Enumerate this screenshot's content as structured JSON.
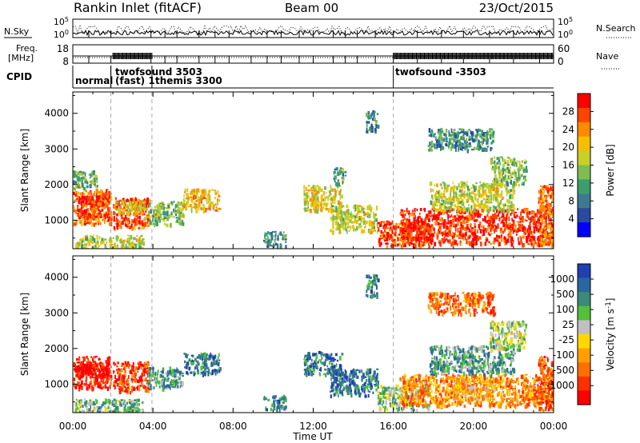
{
  "header": {
    "station": "Rankin Inlet (fitACF)",
    "beam": "Beam 00",
    "date": "23/Oct/2015"
  },
  "noise_panel": {
    "left_label": "N.Sky",
    "right_label": "N.Search",
    "left_ticks": [
      "10^5",
      "10^0"
    ],
    "right_ticks": [
      "10^5",
      "10^0"
    ]
  },
  "freq_panel": {
    "left_label_1": "Freq.",
    "left_label_2": "[MHz]",
    "right_label": "Nave",
    "left_ticks": [
      "18",
      "8"
    ],
    "right_ticks": [
      "60",
      "0"
    ]
  },
  "cpid_panel": {
    "label": "CPID",
    "modes": [
      {
        "label": "normal",
        "start_hour": 0.0
      },
      {
        "label": "twofsound 3503",
        "start_hour": 1.9
      },
      {
        "label": "(fast) 1",
        "start_hour": 1.9
      },
      {
        "label": "themis 3300",
        "start_hour": 3.95
      },
      {
        "label": "twofsound -3503",
        "start_hour": 16.0
      }
    ]
  },
  "x_axis": {
    "label": "Time UT",
    "ticks": [
      "00:00",
      "04:00",
      "08:00",
      "12:00",
      "16:00",
      "20:00",
      "00:00"
    ]
  },
  "chart_data": [
    {
      "type": "heatmap",
      "parameter": "power",
      "ylabel": "Slant Range [km]",
      "yticks": [
        "1000",
        "2000",
        "3000",
        "4000"
      ],
      "ylim": [
        200,
        4600
      ],
      "xlim": [
        0,
        24
      ],
      "colorbar": {
        "label": "Power [dB]",
        "ticks": [
          "28",
          "24",
          "20",
          "16",
          "12",
          "8",
          "4"
        ],
        "colors": [
          "#ff0000",
          "#ff4400",
          "#ff8a00",
          "#f2c000",
          "#c8d028",
          "#7fbc50",
          "#3c9e6a",
          "#3c7a90",
          "#284aa0",
          "#0000ff"
        ]
      },
      "blobs": [
        {
          "t0": 0.0,
          "t1": 1.9,
          "r0": 900,
          "r1": 1900,
          "level": 0.78
        },
        {
          "t0": 0.2,
          "t1": 1.8,
          "r0": 1100,
          "r1": 1700,
          "level": 0.9
        },
        {
          "t0": 2.0,
          "t1": 3.8,
          "r0": 800,
          "r1": 1650,
          "level": 0.85
        },
        {
          "t0": 2.1,
          "t1": 3.6,
          "r0": 1250,
          "r1": 1600,
          "level": 0.6
        },
        {
          "t0": 3.7,
          "t1": 5.5,
          "r0": 900,
          "r1": 1550,
          "level": 0.45
        },
        {
          "t0": 5.5,
          "t1": 7.3,
          "r0": 1300,
          "r1": 1900,
          "level": 0.65
        },
        {
          "t0": 0.1,
          "t1": 3.5,
          "r0": 200,
          "r1": 600,
          "level": 0.55
        },
        {
          "t0": 9.5,
          "t1": 10.6,
          "r0": 300,
          "r1": 700,
          "level": 0.3
        },
        {
          "t0": 11.5,
          "t1": 13.4,
          "r0": 1300,
          "r1": 2000,
          "level": 0.6
        },
        {
          "t0": 12.8,
          "t1": 15.2,
          "r0": 700,
          "r1": 1450,
          "level": 0.55
        },
        {
          "t0": 15.2,
          "t1": 17.8,
          "r0": 300,
          "r1": 1000,
          "level": 0.85
        },
        {
          "t0": 16.3,
          "t1": 24.0,
          "r0": 350,
          "r1": 1350,
          "level": 0.9
        },
        {
          "t0": 17.8,
          "t1": 22.0,
          "r0": 1300,
          "r1": 2100,
          "level": 0.55
        },
        {
          "t0": 20.8,
          "t1": 22.6,
          "r0": 2000,
          "r1": 2800,
          "level": 0.45
        },
        {
          "t0": 23.2,
          "t1": 24.0,
          "r0": 300,
          "r1": 2000,
          "level": 0.8
        },
        {
          "t0": 13.0,
          "t1": 13.6,
          "r0": 2000,
          "r1": 2500,
          "level": 0.35
        },
        {
          "t0": 14.6,
          "t1": 15.2,
          "r0": 3500,
          "r1": 4100,
          "level": 0.3
        },
        {
          "t0": 17.7,
          "t1": 21.0,
          "r0": 3000,
          "r1": 3600,
          "level": 0.3
        },
        {
          "t0": 0.0,
          "t1": 1.2,
          "r0": 1900,
          "r1": 2400,
          "level": 0.4
        }
      ]
    },
    {
      "type": "heatmap",
      "parameter": "velocity",
      "ylabel": "Slant Range [km]",
      "yticks": [
        "1000",
        "2000",
        "3000",
        "4000"
      ],
      "ylim": [
        200,
        4600
      ],
      "xlim": [
        0,
        24
      ],
      "colorbar": {
        "label": "Velocity [m s^-1]",
        "ticks": [
          "1000",
          "500",
          "100",
          "25",
          "-25",
          "-100",
          "-500",
          "-1000"
        ],
        "colors": [
          "#2040b0",
          "#2a66a0",
          "#3c8a78",
          "#52c038",
          "#c0c0c0",
          "#ffd800",
          "#ffa000",
          "#ff7000",
          "#ff3000",
          "#ff0000"
        ]
      },
      "blobs": [
        {
          "t0": 0.0,
          "t1": 1.9,
          "r0": 900,
          "r1": 1800,
          "level": 0.1
        },
        {
          "t0": 0.3,
          "t1": 1.8,
          "r0": 1200,
          "r1": 1650,
          "level": 0.05
        },
        {
          "t0": 2.0,
          "t1": 3.8,
          "r0": 800,
          "r1": 1650,
          "level": 0.15
        },
        {
          "t0": 3.7,
          "t1": 5.5,
          "r0": 900,
          "r1": 1500,
          "level": 0.72
        },
        {
          "t0": 5.5,
          "t1": 7.3,
          "r0": 1300,
          "r1": 1900,
          "level": 0.8
        },
        {
          "t0": 0.1,
          "t1": 3.5,
          "r0": 200,
          "r1": 600,
          "level": 0.65
        },
        {
          "t0": 9.5,
          "t1": 10.6,
          "r0": 300,
          "r1": 700,
          "level": 0.78
        },
        {
          "t0": 11.5,
          "t1": 13.4,
          "r0": 1300,
          "r1": 1950,
          "level": 0.8
        },
        {
          "t0": 12.8,
          "t1": 15.2,
          "r0": 700,
          "r1": 1450,
          "level": 0.82
        },
        {
          "t0": 15.2,
          "t1": 17.8,
          "r0": 300,
          "r1": 1000,
          "level": 0.6
        },
        {
          "t0": 16.3,
          "t1": 24.0,
          "r0": 400,
          "r1": 1300,
          "level": 0.3
        },
        {
          "t0": 19.0,
          "t1": 21.0,
          "r0": 600,
          "r1": 1200,
          "level": 0.4
        },
        {
          "t0": 17.8,
          "t1": 22.0,
          "r0": 1300,
          "r1": 2100,
          "level": 0.72
        },
        {
          "t0": 20.8,
          "t1": 22.6,
          "r0": 2000,
          "r1": 2800,
          "level": 0.55
        },
        {
          "t0": 23.2,
          "t1": 24.0,
          "r0": 300,
          "r1": 1800,
          "level": 0.2
        },
        {
          "t0": 14.6,
          "t1": 15.2,
          "r0": 3500,
          "r1": 4100,
          "level": 0.8
        },
        {
          "t0": 17.7,
          "t1": 21.0,
          "r0": 3000,
          "r1": 3600,
          "level": 0.25
        }
      ]
    }
  ]
}
